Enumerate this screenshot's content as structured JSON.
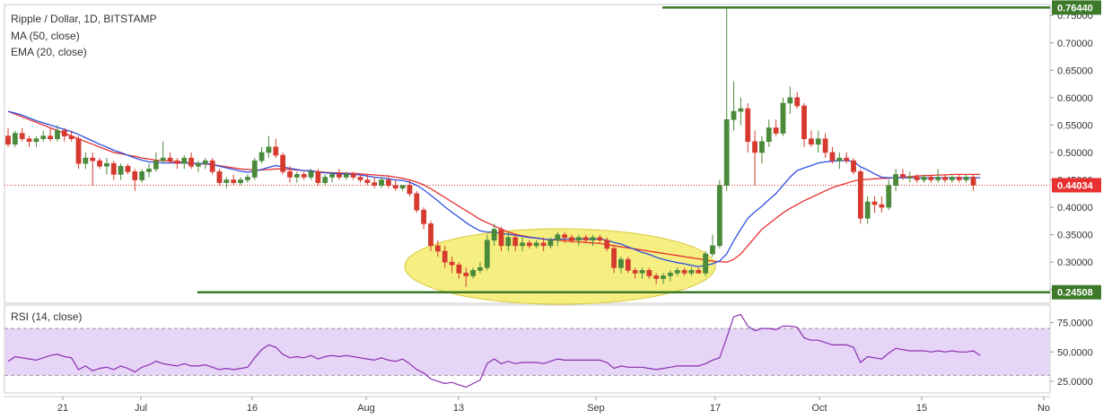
{
  "header": {
    "title": "Ripple / Dollar, 1D, BITSTAMP",
    "ma_label": "MA (50, close)",
    "ema_label": "EMA (20, close)"
  },
  "rsi_panel": {
    "label": "RSI (14, close)"
  },
  "colors": {
    "up": "#4a8a3a",
    "down": "#d63a2f",
    "ma": "#2f4fe0",
    "ema": "#e83030",
    "rsi": "#8b2fb0",
    "rsi_band": "#e6d5f7",
    "support_line": "#3c7a2a",
    "highlight": "#f5ee74",
    "tag": "#3c7a2a",
    "last_price_tag": "#e83030"
  },
  "chart_data": [
    {
      "type": "candlestick",
      "title": "Ripple / Dollar, 1D, BITSTAMP",
      "y_ticks": [
        "0.25000",
        "0.30000",
        "0.35000",
        "0.40000",
        "0.45000",
        "0.50000",
        "0.55000",
        "0.60000",
        "0.65000",
        "0.70000",
        "0.75000"
      ],
      "ylim": [
        0.225,
        0.77
      ],
      "x_ticks": [
        "21",
        "Jul",
        "16",
        "Aug",
        "13",
        "Sep",
        "17",
        "Oct",
        "15",
        "No"
      ],
      "horizontal_levels": [
        {
          "label": "0.76440",
          "value": 0.7644,
          "kind": "resistance"
        },
        {
          "label": "0.24508",
          "value": 0.24508,
          "kind": "support"
        }
      ],
      "last_price": {
        "label": "0.44034",
        "value": 0.44034
      },
      "candles": [
        [
          0.53,
          0.545,
          0.51,
          0.515
        ],
        [
          0.515,
          0.54,
          0.51,
          0.535
        ],
        [
          0.535,
          0.545,
          0.52,
          0.525
        ],
        [
          0.525,
          0.53,
          0.51,
          0.52
        ],
        [
          0.52,
          0.53,
          0.51,
          0.525
        ],
        [
          0.525,
          0.54,
          0.52,
          0.53
        ],
        [
          0.53,
          0.545,
          0.52,
          0.525
        ],
        [
          0.525,
          0.55,
          0.52,
          0.54
        ],
        [
          0.54,
          0.545,
          0.52,
          0.53
        ],
        [
          0.53,
          0.54,
          0.52,
          0.525
        ],
        [
          0.525,
          0.53,
          0.47,
          0.48
        ],
        [
          0.48,
          0.5,
          0.47,
          0.49
        ],
        [
          0.49,
          0.5,
          0.44,
          0.485
        ],
        [
          0.485,
          0.49,
          0.47,
          0.475
        ],
        [
          0.475,
          0.49,
          0.46,
          0.48
        ],
        [
          0.48,
          0.485,
          0.45,
          0.46
        ],
        [
          0.46,
          0.48,
          0.45,
          0.475
        ],
        [
          0.475,
          0.48,
          0.46,
          0.465
        ],
        [
          0.465,
          0.47,
          0.43,
          0.45
        ],
        [
          0.45,
          0.47,
          0.445,
          0.465
        ],
        [
          0.465,
          0.48,
          0.455,
          0.47
        ],
        [
          0.47,
          0.5,
          0.465,
          0.485
        ],
        [
          0.485,
          0.52,
          0.48,
          0.49
        ],
        [
          0.49,
          0.5,
          0.48,
          0.485
        ],
        [
          0.485,
          0.49,
          0.47,
          0.48
        ],
        [
          0.48,
          0.495,
          0.47,
          0.49
        ],
        [
          0.49,
          0.5,
          0.47,
          0.475
        ],
        [
          0.475,
          0.485,
          0.465,
          0.48
        ],
        [
          0.48,
          0.49,
          0.47,
          0.485
        ],
        [
          0.485,
          0.49,
          0.46,
          0.465
        ],
        [
          0.465,
          0.47,
          0.44,
          0.445
        ],
        [
          0.445,
          0.455,
          0.435,
          0.45
        ],
        [
          0.45,
          0.46,
          0.44,
          0.445
        ],
        [
          0.445,
          0.455,
          0.44,
          0.45
        ],
        [
          0.45,
          0.46,
          0.445,
          0.455
        ],
        [
          0.455,
          0.49,
          0.45,
          0.485
        ],
        [
          0.485,
          0.51,
          0.48,
          0.5
        ],
        [
          0.5,
          0.53,
          0.49,
          0.51
        ],
        [
          0.51,
          0.525,
          0.49,
          0.495
        ],
        [
          0.495,
          0.5,
          0.46,
          0.465
        ],
        [
          0.465,
          0.475,
          0.445,
          0.455
        ],
        [
          0.455,
          0.465,
          0.445,
          0.46
        ],
        [
          0.46,
          0.465,
          0.45,
          0.455
        ],
        [
          0.455,
          0.47,
          0.45,
          0.465
        ],
        [
          0.465,
          0.47,
          0.44,
          0.445
        ],
        [
          0.445,
          0.46,
          0.44,
          0.455
        ],
        [
          0.455,
          0.465,
          0.445,
          0.46
        ],
        [
          0.46,
          0.47,
          0.45,
          0.455
        ],
        [
          0.455,
          0.465,
          0.45,
          0.46
        ],
        [
          0.46,
          0.465,
          0.45,
          0.455
        ],
        [
          0.455,
          0.46,
          0.445,
          0.45
        ],
        [
          0.45,
          0.46,
          0.44,
          0.445
        ],
        [
          0.445,
          0.455,
          0.435,
          0.44
        ],
        [
          0.44,
          0.455,
          0.435,
          0.45
        ],
        [
          0.45,
          0.455,
          0.435,
          0.44
        ],
        [
          0.44,
          0.45,
          0.43,
          0.435
        ],
        [
          0.435,
          0.44,
          0.43,
          0.44
        ],
        [
          0.44,
          0.45,
          0.42,
          0.425
        ],
        [
          0.425,
          0.43,
          0.39,
          0.395
        ],
        [
          0.395,
          0.4,
          0.36,
          0.37
        ],
        [
          0.37,
          0.375,
          0.32,
          0.33
        ],
        [
          0.33,
          0.34,
          0.31,
          0.32
        ],
        [
          0.32,
          0.33,
          0.29,
          0.3
        ],
        [
          0.3,
          0.31,
          0.28,
          0.295
        ],
        [
          0.295,
          0.3,
          0.27,
          0.28
        ],
        [
          0.28,
          0.29,
          0.255,
          0.275
        ],
        [
          0.275,
          0.29,
          0.27,
          0.285
        ],
        [
          0.285,
          0.3,
          0.28,
          0.29
        ],
        [
          0.29,
          0.35,
          0.285,
          0.34
        ],
        [
          0.34,
          0.37,
          0.33,
          0.36
        ],
        [
          0.36,
          0.365,
          0.32,
          0.33
        ],
        [
          0.33,
          0.355,
          0.32,
          0.345
        ],
        [
          0.345,
          0.35,
          0.32,
          0.33
        ],
        [
          0.33,
          0.345,
          0.32,
          0.335
        ],
        [
          0.335,
          0.34,
          0.325,
          0.33
        ],
        [
          0.33,
          0.34,
          0.325,
          0.335
        ],
        [
          0.335,
          0.345,
          0.32,
          0.33
        ],
        [
          0.33,
          0.345,
          0.325,
          0.34
        ],
        [
          0.34,
          0.355,
          0.33,
          0.35
        ],
        [
          0.35,
          0.355,
          0.335,
          0.345
        ],
        [
          0.345,
          0.35,
          0.335,
          0.34
        ],
        [
          0.34,
          0.35,
          0.33,
          0.345
        ],
        [
          0.345,
          0.35,
          0.335,
          0.34
        ],
        [
          0.34,
          0.35,
          0.33,
          0.345
        ],
        [
          0.345,
          0.35,
          0.335,
          0.34
        ],
        [
          0.34,
          0.345,
          0.32,
          0.325
        ],
        [
          0.325,
          0.33,
          0.28,
          0.29
        ],
        [
          0.29,
          0.31,
          0.28,
          0.305
        ],
        [
          0.305,
          0.31,
          0.28,
          0.285
        ],
        [
          0.285,
          0.29,
          0.27,
          0.28
        ],
        [
          0.28,
          0.29,
          0.27,
          0.285
        ],
        [
          0.285,
          0.29,
          0.27,
          0.275
        ],
        [
          0.275,
          0.28,
          0.26,
          0.27
        ],
        [
          0.27,
          0.28,
          0.26,
          0.275
        ],
        [
          0.275,
          0.285,
          0.265,
          0.28
        ],
        [
          0.28,
          0.29,
          0.275,
          0.285
        ],
        [
          0.285,
          0.29,
          0.275,
          0.28
        ],
        [
          0.28,
          0.29,
          0.275,
          0.285
        ],
        [
          0.285,
          0.29,
          0.28,
          0.28
        ],
        [
          0.28,
          0.32,
          0.275,
          0.315
        ],
        [
          0.315,
          0.35,
          0.31,
          0.33
        ],
        [
          0.33,
          0.45,
          0.325,
          0.44
        ],
        [
          0.44,
          0.7644,
          0.43,
          0.56
        ],
        [
          0.56,
          0.63,
          0.54,
          0.575
        ],
        [
          0.575,
          0.6,
          0.55,
          0.58
        ],
        [
          0.58,
          0.59,
          0.5,
          0.52
        ],
        [
          0.52,
          0.54,
          0.44,
          0.5
        ],
        [
          0.5,
          0.53,
          0.48,
          0.52
        ],
        [
          0.52,
          0.56,
          0.51,
          0.545
        ],
        [
          0.545,
          0.56,
          0.53,
          0.535
        ],
        [
          0.535,
          0.6,
          0.53,
          0.59
        ],
        [
          0.59,
          0.62,
          0.57,
          0.6
        ],
        [
          0.6,
          0.61,
          0.58,
          0.585
        ],
        [
          0.585,
          0.59,
          0.51,
          0.525
        ],
        [
          0.525,
          0.54,
          0.51,
          0.515
        ],
        [
          0.515,
          0.54,
          0.5,
          0.525
        ],
        [
          0.525,
          0.535,
          0.49,
          0.5
        ],
        [
          0.5,
          0.51,
          0.48,
          0.485
        ],
        [
          0.485,
          0.5,
          0.47,
          0.49
        ],
        [
          0.49,
          0.5,
          0.48,
          0.485
        ],
        [
          0.485,
          0.49,
          0.46,
          0.465
        ],
        [
          0.465,
          0.47,
          0.37,
          0.38
        ],
        [
          0.38,
          0.42,
          0.37,
          0.41
        ],
        [
          0.41,
          0.42,
          0.39,
          0.405
        ],
        [
          0.405,
          0.42,
          0.39,
          0.4
        ],
        [
          0.4,
          0.45,
          0.395,
          0.44
        ],
        [
          0.44,
          0.47,
          0.43,
          0.46
        ],
        [
          0.46,
          0.47,
          0.45,
          0.455
        ],
        [
          0.455,
          0.465,
          0.445,
          0.455
        ],
        [
          0.455,
          0.46,
          0.445,
          0.45
        ],
        [
          0.45,
          0.46,
          0.445,
          0.455
        ],
        [
          0.455,
          0.46,
          0.445,
          0.45
        ],
        [
          0.45,
          0.47,
          0.445,
          0.455
        ],
        [
          0.455,
          0.46,
          0.445,
          0.45
        ],
        [
          0.45,
          0.46,
          0.445,
          0.455
        ],
        [
          0.455,
          0.46,
          0.445,
          0.45
        ],
        [
          0.45,
          0.46,
          0.445,
          0.455
        ],
        [
          0.455,
          0.46,
          0.43,
          0.44034
        ]
      ],
      "ma50": [
        0.575,
        0.57,
        0.565,
        0.56,
        0.555,
        0.55,
        0.545,
        0.54,
        0.535,
        0.53,
        0.525,
        0.52,
        0.515,
        0.51,
        0.505,
        0.5,
        0.498,
        0.495,
        0.493,
        0.49,
        0.488,
        0.486,
        0.485,
        0.484,
        0.483,
        0.482,
        0.481,
        0.48,
        0.479,
        0.478,
        0.476,
        0.474,
        0.472,
        0.47,
        0.469,
        0.468,
        0.468,
        0.469,
        0.47,
        0.47,
        0.469,
        0.468,
        0.467,
        0.466,
        0.465,
        0.464,
        0.463,
        0.463,
        0.462,
        0.462,
        0.461,
        0.46,
        0.459,
        0.458,
        0.457,
        0.455,
        0.453,
        0.45,
        0.446,
        0.441,
        0.434,
        0.426,
        0.418,
        0.41,
        0.402,
        0.394,
        0.386,
        0.378,
        0.372,
        0.366,
        0.36,
        0.355,
        0.351,
        0.348,
        0.346,
        0.344,
        0.342,
        0.341,
        0.34,
        0.339,
        0.338,
        0.337,
        0.336,
        0.335,
        0.334,
        0.332,
        0.33,
        0.328,
        0.326,
        0.324,
        0.322,
        0.32,
        0.318,
        0.316,
        0.314,
        0.312,
        0.31,
        0.308,
        0.306,
        0.304,
        0.302,
        0.301,
        0.3,
        0.305,
        0.315,
        0.33,
        0.345,
        0.36,
        0.37,
        0.38,
        0.39,
        0.398,
        0.405,
        0.412,
        0.418,
        0.424,
        0.43,
        0.436,
        0.44,
        0.444,
        0.448,
        0.45,
        0.451,
        0.452,
        0.453,
        0.453,
        0.454,
        0.455,
        0.456,
        0.457,
        0.458,
        0.458,
        0.459,
        0.459,
        0.46,
        0.46,
        0.46,
        0.46,
        0.46
      ],
      "ema20": [
        0.575,
        0.572,
        0.568,
        0.563,
        0.558,
        0.554,
        0.55,
        0.546,
        0.542,
        0.538,
        0.533,
        0.527,
        0.521,
        0.515,
        0.51,
        0.504,
        0.5,
        0.495,
        0.49,
        0.486,
        0.483,
        0.482,
        0.481,
        0.481,
        0.481,
        0.481,
        0.48,
        0.48,
        0.48,
        0.478,
        0.475,
        0.472,
        0.469,
        0.466,
        0.464,
        0.466,
        0.469,
        0.473,
        0.476,
        0.474,
        0.471,
        0.469,
        0.467,
        0.467,
        0.464,
        0.463,
        0.462,
        0.461,
        0.461,
        0.46,
        0.459,
        0.457,
        0.455,
        0.454,
        0.452,
        0.45,
        0.449,
        0.446,
        0.44,
        0.432,
        0.422,
        0.412,
        0.401,
        0.391,
        0.382,
        0.372,
        0.364,
        0.357,
        0.355,
        0.355,
        0.352,
        0.351,
        0.349,
        0.347,
        0.345,
        0.344,
        0.342,
        0.341,
        0.342,
        0.342,
        0.342,
        0.342,
        0.342,
        0.342,
        0.342,
        0.34,
        0.336,
        0.333,
        0.328,
        0.323,
        0.318,
        0.314,
        0.309,
        0.305,
        0.302,
        0.299,
        0.297,
        0.294,
        0.292,
        0.294,
        0.297,
        0.302,
        0.315,
        0.339,
        0.36,
        0.38,
        0.392,
        0.402,
        0.414,
        0.425,
        0.44,
        0.455,
        0.467,
        0.472,
        0.476,
        0.481,
        0.483,
        0.484,
        0.485,
        0.485,
        0.484,
        0.474,
        0.468,
        0.461,
        0.455,
        0.454,
        0.454,
        0.454,
        0.454,
        0.454,
        0.454,
        0.454,
        0.454,
        0.454,
        0.454,
        0.454,
        0.454,
        0.454,
        0.454
      ],
      "rsi": {
        "title": "RSI (14, close)",
        "y_ticks": [
          "25.0000",
          "50.0000",
          "75.0000"
        ],
        "ylim": [
          15,
          90
        ],
        "band": [
          30,
          70
        ],
        "values": [
          42,
          46,
          45,
          44,
          43,
          45,
          47,
          48,
          46,
          45,
          35,
          38,
          34,
          36,
          37,
          35,
          38,
          36,
          33,
          37,
          39,
          42,
          40,
          39,
          38,
          40,
          38,
          38,
          39,
          37,
          35,
          36,
          35,
          36,
          37,
          45,
          52,
          56,
          54,
          48,
          45,
          46,
          45,
          47,
          44,
          46,
          47,
          46,
          47,
          46,
          45,
          44,
          43,
          45,
          43,
          42,
          44,
          40,
          35,
          32,
          27,
          25,
          23,
          24,
          22,
          20,
          23,
          26,
          40,
          44,
          40,
          42,
          40,
          41,
          41,
          41,
          40,
          42,
          44,
          43,
          43,
          43,
          43,
          43,
          43,
          41,
          36,
          38,
          37,
          37,
          37,
          36,
          35,
          36,
          37,
          38,
          38,
          38,
          38,
          40,
          43,
          45,
          62,
          80,
          82,
          72,
          68,
          70,
          70,
          69,
          72,
          72,
          71,
          62,
          60,
          60,
          58,
          56,
          56,
          56,
          54,
          41,
          46,
          45,
          44,
          49,
          53,
          52,
          51,
          51,
          51,
          50,
          51,
          50,
          51,
          50,
          50,
          51,
          47
        ]
      }
    }
  ]
}
